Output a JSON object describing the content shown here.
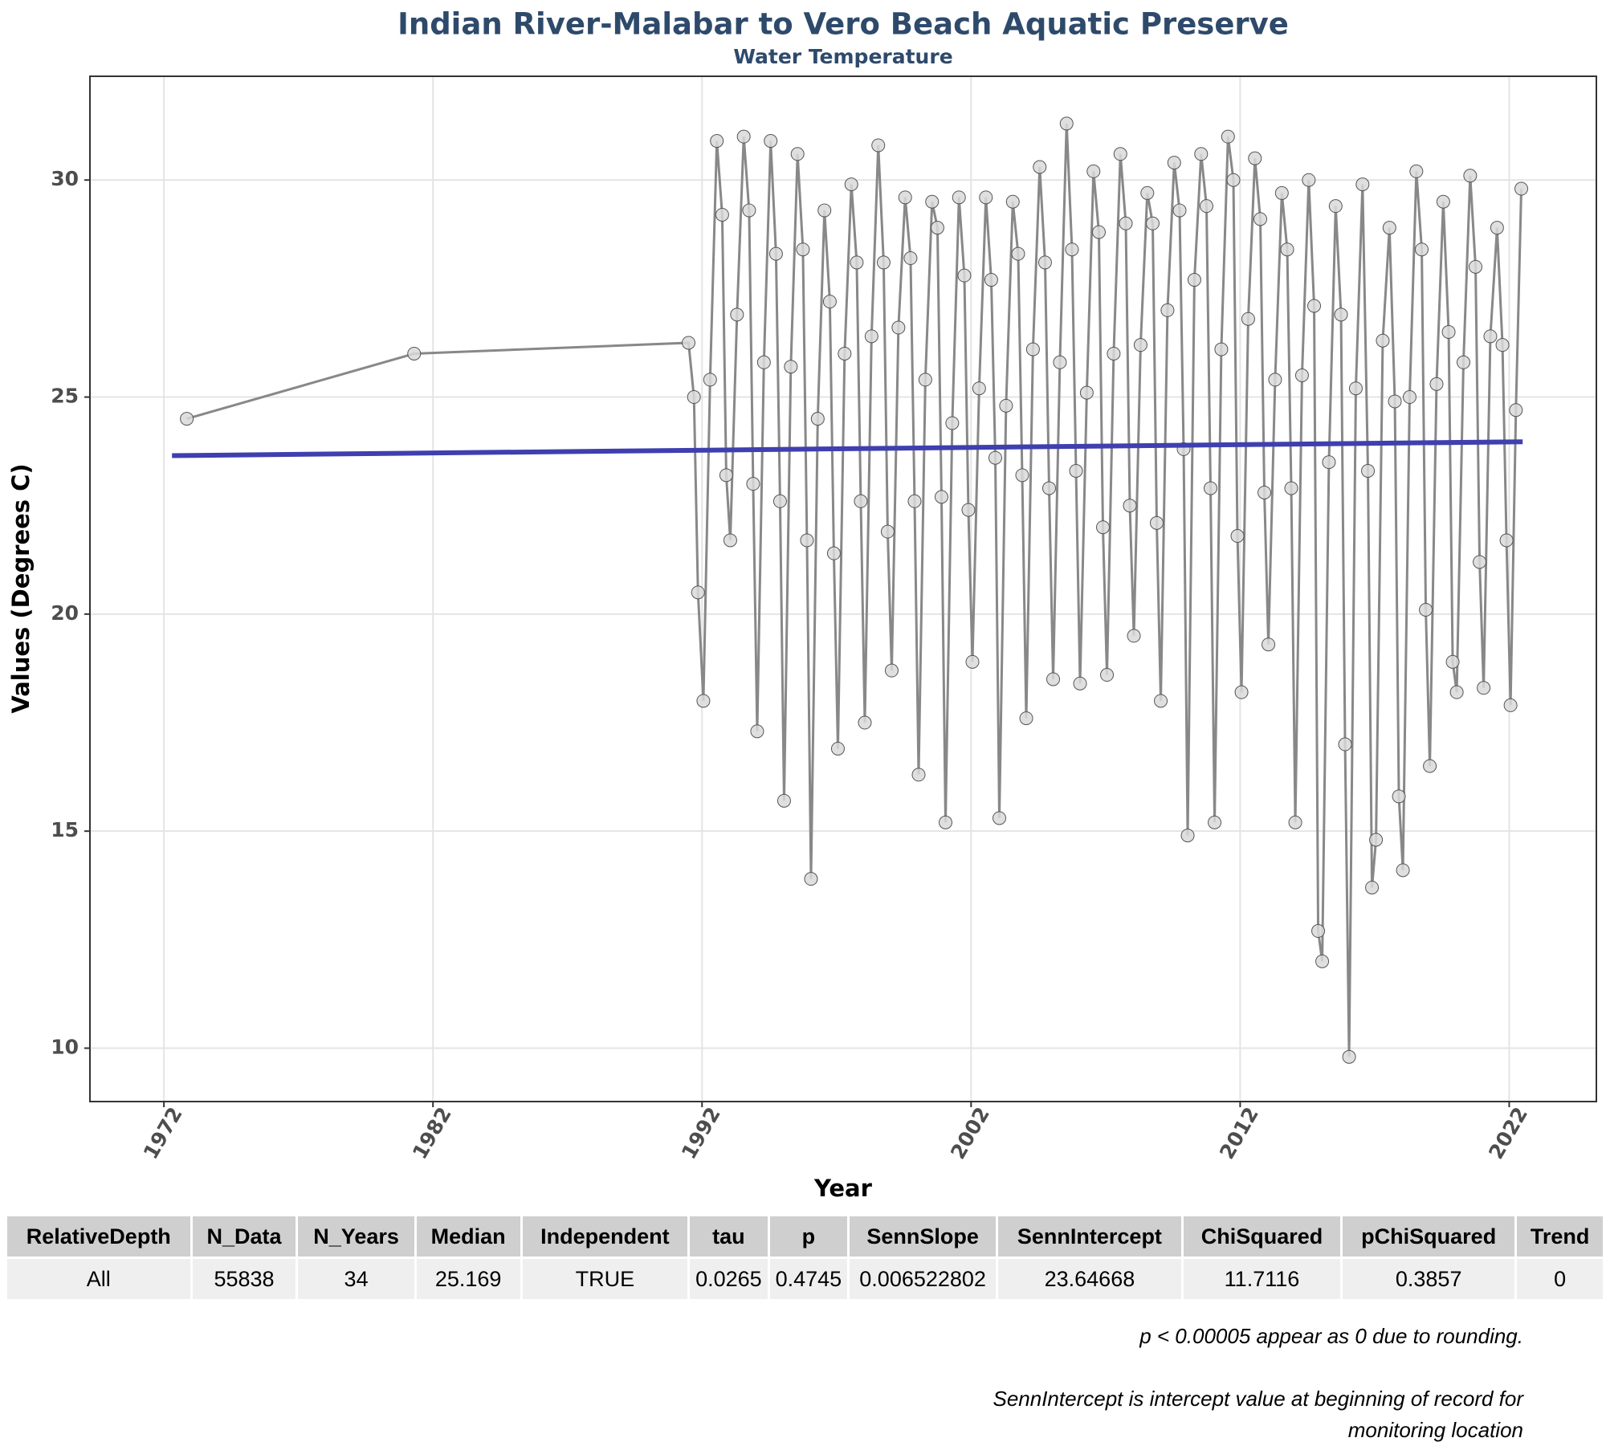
{
  "chart_data": {
    "type": "line",
    "title": "Indian River-Malabar to Vero Beach Aquatic Preserve",
    "subtitle": "Water Temperature",
    "xlabel": "Year",
    "ylabel": "Values (Degrees C)",
    "xlim": [
      1969.25,
      2025.24
    ],
    "ylim": [
      8.77,
      32.39
    ],
    "xticks": [
      1972,
      1982,
      1992,
      2002,
      2012,
      2022
    ],
    "yticks": [
      10,
      15,
      20,
      25,
      30
    ],
    "grid": true,
    "series": [
      {
        "color": "#888888",
        "markers": true,
        "x": [
          1972.85,
          1981.3,
          1991.5,
          1991.7,
          1991.85,
          1992.05,
          1992.3,
          1992.55,
          1992.75,
          1992.9,
          1993.05,
          1993.3,
          1993.55,
          1993.75,
          1993.9,
          1994.05,
          1994.3,
          1994.55,
          1994.75,
          1994.9,
          1995.05,
          1995.3,
          1995.55,
          1995.75,
          1995.9,
          1996.05,
          1996.3,
          1996.55,
          1996.75,
          1996.9,
          1997.05,
          1997.3,
          1997.55,
          1997.75,
          1997.9,
          1998.05,
          1998.3,
          1998.55,
          1998.75,
          1998.9,
          1999.05,
          1999.3,
          1999.55,
          1999.75,
          1999.9,
          2000.05,
          2000.3,
          2000.55,
          2000.75,
          2000.9,
          2001.05,
          2001.3,
          2001.55,
          2001.75,
          2001.9,
          2002.05,
          2002.3,
          2002.55,
          2002.75,
          2002.9,
          2003.05,
          2003.3,
          2003.55,
          2003.75,
          2003.9,
          2004.05,
          2004.3,
          2004.55,
          2004.75,
          2004.9,
          2005.05,
          2005.3,
          2005.55,
          2005.75,
          2005.9,
          2006.05,
          2006.3,
          2006.55,
          2006.75,
          2006.9,
          2007.05,
          2007.3,
          2007.55,
          2007.75,
          2007.9,
          2008.05,
          2008.3,
          2008.55,
          2008.75,
          2008.9,
          2009.05,
          2009.3,
          2009.55,
          2009.75,
          2009.9,
          2010.05,
          2010.3,
          2010.55,
          2010.75,
          2010.9,
          2011.05,
          2011.3,
          2011.55,
          2011.75,
          2011.9,
          2012.05,
          2012.3,
          2012.55,
          2012.75,
          2012.9,
          2013.05,
          2013.3,
          2013.55,
          2013.75,
          2013.9,
          2014.05,
          2014.3,
          2014.55,
          2014.75,
          2014.9,
          2015.05,
          2015.3,
          2015.55,
          2015.75,
          2015.9,
          2016.05,
          2016.3,
          2016.55,
          2016.75,
          2016.9,
          2017.05,
          2017.3,
          2017.55,
          2017.75,
          2017.9,
          2018.05,
          2018.3,
          2018.55,
          2018.75,
          2018.9,
          2019.05,
          2019.3,
          2019.55,
          2019.75,
          2019.9,
          2020.05,
          2020.3,
          2020.55,
          2020.75,
          2020.9,
          2021.05,
          2021.3,
          2021.55,
          2021.75,
          2021.9,
          2022.05,
          2022.25,
          2022.45
        ],
        "values": [
          24.5,
          26.0,
          26.25,
          25.0,
          20.5,
          18.0,
          25.4,
          30.9,
          29.2,
          23.2,
          21.7,
          26.9,
          31.0,
          29.3,
          23.0,
          17.3,
          25.8,
          30.9,
          28.3,
          22.6,
          15.7,
          25.7,
          30.6,
          28.4,
          21.7,
          13.9,
          24.5,
          29.3,
          27.2,
          21.4,
          16.9,
          26.0,
          29.9,
          28.1,
          22.6,
          17.5,
          26.4,
          30.8,
          28.1,
          21.9,
          18.7,
          26.6,
          29.6,
          28.2,
          22.6,
          16.3,
          25.4,
          29.5,
          28.9,
          22.7,
          15.2,
          24.4,
          29.6,
          27.8,
          22.4,
          18.9,
          25.2,
          29.6,
          27.7,
          23.6,
          15.3,
          24.8,
          29.5,
          28.3,
          23.2,
          17.6,
          26.1,
          30.3,
          28.1,
          22.9,
          18.5,
          25.8,
          31.3,
          28.4,
          23.3,
          18.4,
          25.1,
          30.2,
          28.8,
          22.0,
          18.6,
          26.0,
          30.6,
          29.0,
          22.5,
          19.5,
          26.2,
          29.7,
          29.0,
          22.1,
          18.0,
          27.0,
          30.4,
          29.3,
          23.8,
          14.9,
          27.7,
          30.6,
          29.4,
          22.9,
          15.2,
          26.1,
          31.0,
          30.0,
          21.8,
          18.2,
          26.8,
          30.5,
          29.1,
          22.8,
          19.3,
          25.4,
          29.7,
          28.4,
          22.9,
          15.2,
          25.5,
          30.0,
          27.1,
          12.7,
          12.0,
          23.5,
          29.4,
          26.9,
          17.0,
          9.8,
          25.2,
          29.9,
          23.3,
          13.7,
          14.8,
          26.3,
          28.9,
          24.9,
          15.8,
          14.1,
          25.0,
          30.2,
          28.4,
          20.1,
          16.5,
          25.3,
          29.5,
          26.5,
          18.9,
          18.2,
          25.8,
          30.1,
          28.0,
          21.2,
          18.3,
          26.4,
          28.9,
          26.2,
          21.7,
          17.9,
          24.7,
          29.8
        ]
      },
      {
        "color": "#3f3fb0",
        "markers": false,
        "x": [
          1972.3,
          2022.5
        ],
        "values": [
          23.65,
          23.97
        ]
      }
    ]
  },
  "table": {
    "columns": [
      "RelativeDepth",
      "N_Data",
      "N_Years",
      "Median",
      "Independent",
      "tau",
      "p",
      "SennSlope",
      "SennIntercept",
      "ChiSquared",
      "pChiSquared",
      "Trend"
    ],
    "rows": [
      [
        "All",
        55838,
        34,
        25.169,
        "TRUE",
        0.0265,
        0.4745,
        0.006522802,
        23.64668,
        11.7116,
        0.3857,
        0
      ]
    ]
  },
  "notes": [
    "p < 0.00005 appear as 0 due to rounding.",
    "SennIntercept is intercept value at beginning of record for monitoring location"
  ]
}
